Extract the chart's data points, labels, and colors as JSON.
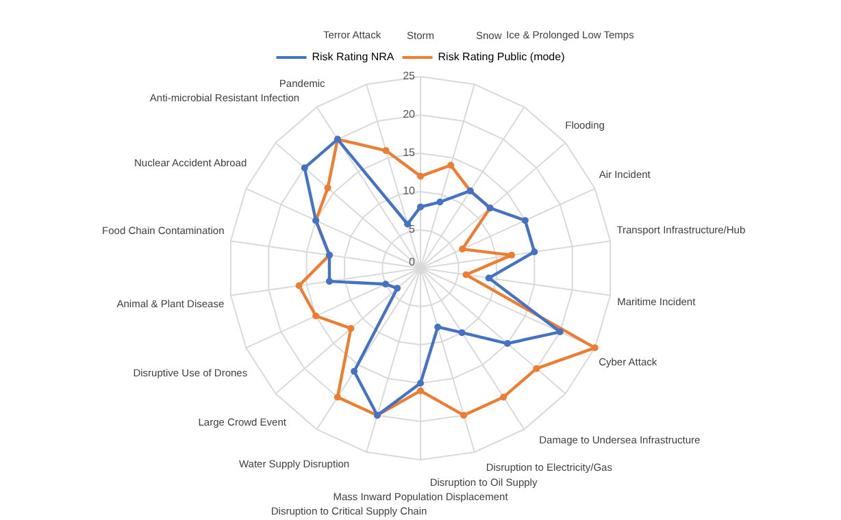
{
  "chart_data": {
    "type": "radar",
    "categories": [
      "Storm",
      "Snow",
      "Ice & Prolonged Low Temps",
      "Flooding",
      "Air Incident",
      "Transport Infrastructure/Hub",
      "Maritime Incident",
      "Cyber Attack",
      "Damage to Undersea Infrastructure",
      "Disruption to Electricity/Gas",
      "Disruption to Oil Supply",
      "Mass Inward Population Displacement",
      "Disruption to Critical Supply Chain",
      "Water Supply Disruption",
      "Large Crowd Event",
      "Disruptive Use of Drones",
      "Animal & Plant Disease",
      "Food Chain Contamination",
      "Nuclear Accident Abroad",
      "Anti-microbial Resistant Infection",
      "Pandemic",
      "Terror Attack"
    ],
    "series": [
      {
        "name": "Risk Rating NRA",
        "color": "#4472c4",
        "values": [
          8,
          9,
          12,
          12,
          15,
          15,
          9,
          20,
          15,
          10,
          8,
          15,
          20,
          16,
          4,
          5,
          12,
          12,
          15,
          20,
          20,
          6
        ]
      },
      {
        "name": "Risk Rating Public (mode)",
        "color": "#ed7d31",
        "values": [
          12,
          14,
          12,
          12,
          6,
          12,
          6,
          25,
          20,
          20,
          20,
          16,
          20,
          20,
          12,
          15,
          16,
          12,
          15,
          16,
          20,
          16
        ]
      }
    ],
    "ylim": [
      0,
      25
    ],
    "yticks": [
      0,
      5,
      10,
      15,
      20,
      25
    ],
    "grid": true,
    "legend": "top",
    "marker": "circle"
  }
}
